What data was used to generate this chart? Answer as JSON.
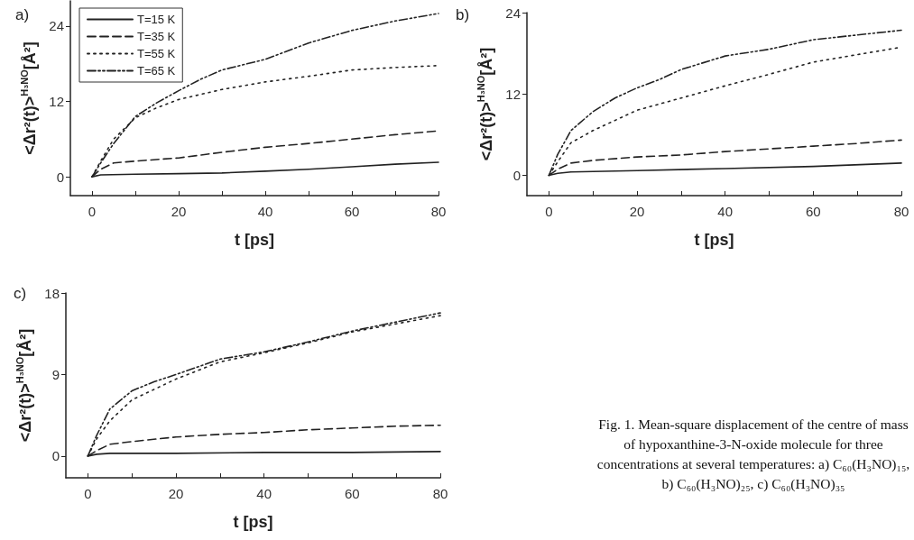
{
  "chart_data": [
    {
      "type": "line",
      "title": "a)",
      "xlabel": "t [ps]",
      "ylabel": "<Δr²(t)>$^{H₃NO}$[Å²]",
      "xlim": [
        -5,
        80
      ],
      "ylim": [
        -3,
        28
      ],
      "xticks": [
        0,
        {
          "value": 10,
          "label": null
        },
        20,
        {
          "value": 30,
          "label": null
        },
        40,
        {
          "value": 50,
          "label": null
        },
        60,
        {
          "value": 70,
          "label": null
        },
        80
      ],
      "yticks": [
        0,
        12,
        24
      ],
      "grid": false,
      "legend": "top left",
      "marker": "none",
      "series": [
        {
          "name": "T=15 K",
          "color": "#222222",
          "line_style": "solid",
          "x": [
            0,
            2,
            10,
            20,
            30,
            40,
            50,
            60,
            70,
            80
          ],
          "values": [
            0,
            0.3,
            0.4,
            0.5,
            0.6,
            0.9,
            1.2,
            1.6,
            2.0,
            2.3
          ]
        },
        {
          "name": "T=35 K",
          "color": "#222222",
          "line_style": "dashed",
          "x": [
            0,
            2,
            5,
            10,
            20,
            30,
            40,
            50,
            60,
            70,
            80
          ],
          "values": [
            0,
            1.2,
            2.2,
            2.5,
            3.0,
            3.9,
            4.7,
            5.3,
            6.0,
            6.7,
            7.3
          ]
        },
        {
          "name": "T=55 K",
          "color": "#222222",
          "line_style": "dotted",
          "x": [
            0,
            2,
            5,
            10,
            15,
            20,
            30,
            40,
            50,
            60,
            70,
            80
          ],
          "values": [
            0,
            2.5,
            6.0,
            9.4,
            11.0,
            12.3,
            13.9,
            15.1,
            16.0,
            17.0,
            17.4,
            17.7
          ]
        },
        {
          "name": "T=65 K",
          "color": "#222222",
          "line_style": "dashdot",
          "x": [
            0,
            2,
            5,
            10,
            15,
            20,
            25,
            30,
            40,
            50,
            60,
            70,
            80
          ],
          "values": [
            0,
            2.2,
            5.3,
            9.6,
            11.8,
            13.7,
            15.5,
            17.0,
            18.7,
            21.3,
            23.3,
            24.8,
            26.0
          ]
        }
      ]
    },
    {
      "type": "line",
      "title": "b)",
      "xlabel": "t [ps]",
      "ylabel": "<Δr²(t)>$^{H₃NO}$[Å²]",
      "xlim": [
        -5,
        80
      ],
      "ylim": [
        -3,
        24
      ],
      "xticks": [
        0,
        {
          "value": 10,
          "label": null
        },
        20,
        {
          "value": 30,
          "label": null
        },
        40,
        {
          "value": 50,
          "label": null
        },
        60,
        {
          "value": 70,
          "label": null
        },
        80
      ],
      "yticks": [
        0,
        12,
        24
      ],
      "grid": false,
      "legend": false,
      "marker": "none",
      "series": [
        {
          "color": "#222222",
          "line_style": "solid",
          "x": [
            0,
            2,
            5,
            20,
            40,
            60,
            80
          ],
          "values": [
            0,
            0.3,
            0.5,
            0.7,
            1.0,
            1.3,
            1.8
          ]
        },
        {
          "color": "#222222",
          "line_style": "dashed",
          "x": [
            0,
            2,
            5,
            10,
            20,
            30,
            40,
            60,
            70,
            80
          ],
          "values": [
            0,
            0.9,
            1.8,
            2.2,
            2.7,
            3.0,
            3.5,
            4.3,
            4.7,
            5.2
          ]
        },
        {
          "color": "#222222",
          "line_style": "dotted",
          "x": [
            0,
            2,
            5,
            10,
            20,
            30,
            40,
            50,
            60,
            70,
            80
          ],
          "values": [
            0,
            2.0,
            4.8,
            6.6,
            9.6,
            11.4,
            13.2,
            14.9,
            16.7,
            17.8,
            18.9
          ]
        },
        {
          "color": "#222222",
          "line_style": "dashdot",
          "x": [
            0,
            2,
            5,
            10,
            15,
            20,
            25,
            30,
            40,
            50,
            60,
            70,
            80
          ],
          "values": [
            0,
            3.1,
            6.6,
            9.4,
            11.4,
            12.9,
            14.1,
            15.6,
            17.6,
            18.6,
            20.0,
            20.7,
            21.4
          ]
        }
      ]
    },
    {
      "type": "line",
      "title": "c)",
      "xlabel": "t [ps]",
      "ylabel": "<Δr²(t)>$^{H₃NO}$[Å²]",
      "xlim": [
        -5,
        80
      ],
      "ylim": [
        -2.4,
        18
      ],
      "xticks": [
        0,
        {
          "value": 10,
          "label": null
        },
        20,
        {
          "value": 30,
          "label": null
        },
        40,
        {
          "value": 50,
          "label": null
        },
        60,
        {
          "value": 70,
          "label": null
        },
        80
      ],
      "yticks": [
        0,
        9,
        18
      ],
      "grid": false,
      "legend": false,
      "marker": "none",
      "annotations": [
        "Fig. 1. Mean-square displacement of the centre of mass of hypoxanthine-3-N-oxide molecule for three concentrations at several temperatures: a) C₆₀(H₃NO)₁₅, b) C₆₀(H₃NO)₂₅, c) C₆₀(H₃NO)₃₅"
      ],
      "series": [
        {
          "color": "#222222",
          "line_style": "solid",
          "x": [
            0,
            2,
            5,
            20,
            40,
            60,
            80
          ],
          "values": [
            0,
            0.2,
            0.3,
            0.3,
            0.4,
            0.4,
            0.5
          ]
        },
        {
          "color": "#222222",
          "line_style": "dashed",
          "x": [
            0,
            2,
            5,
            10,
            20,
            30,
            40,
            50,
            60,
            70,
            80
          ],
          "values": [
            0,
            0.6,
            1.3,
            1.6,
            2.1,
            2.4,
            2.6,
            2.9,
            3.1,
            3.3,
            3.4
          ]
        },
        {
          "color": "#222222",
          "line_style": "dotted",
          "x": [
            0,
            2,
            5,
            10,
            20,
            30,
            40,
            50,
            60,
            70,
            80
          ],
          "values": [
            0,
            1.9,
            3.9,
            6.2,
            8.5,
            10.4,
            11.4,
            12.5,
            13.7,
            14.6,
            15.5
          ]
        },
        {
          "color": "#222222",
          "line_style": "dashdot",
          "x": [
            0,
            2,
            5,
            10,
            15,
            20,
            30,
            40,
            50,
            60,
            70,
            80
          ],
          "values": [
            0,
            2.3,
            5.2,
            7.2,
            8.2,
            9.0,
            10.7,
            11.5,
            12.6,
            13.8,
            14.8,
            15.8
          ]
        }
      ]
    }
  ]
}
